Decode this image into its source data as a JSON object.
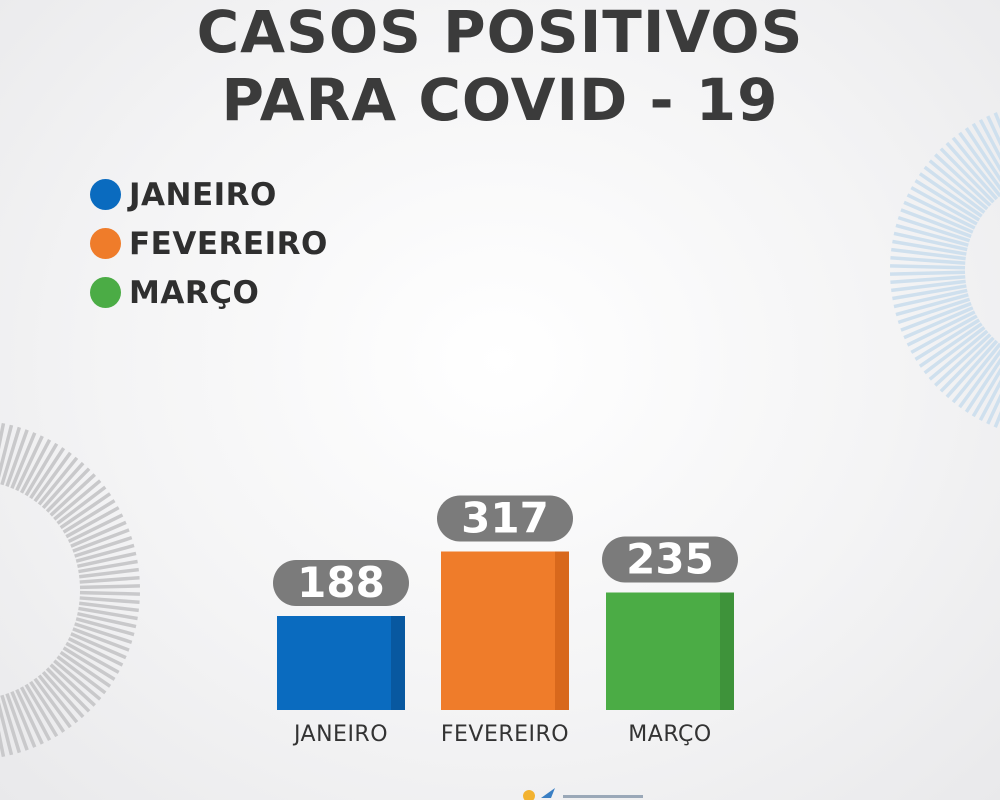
{
  "title": {
    "line1": "CASOS POSITIVOS",
    "line2": "PARA COVID - 19"
  },
  "legend": [
    {
      "label": "JANEIRO",
      "color": "#0a6bbf"
    },
    {
      "label": "FEVEREIRO",
      "color": "#ef7c2a"
    },
    {
      "label": "MARÇO",
      "color": "#4bac45"
    }
  ],
  "chart_data": {
    "type": "bar",
    "title": "CASOS POSITIVOS PARA COVID - 19",
    "categories": [
      "JANEIRO",
      "FEVEREIRO",
      "MARÇO"
    ],
    "values": [
      188,
      317,
      235
    ],
    "value_labels": [
      "188",
      "317",
      "235"
    ],
    "colors": [
      "#0a6bbf",
      "#ef7c2a",
      "#4bac45"
    ],
    "shade_colors": [
      "#0858a0",
      "#d8681c",
      "#3e933a"
    ],
    "label_badge_color": "#7b7b7b",
    "grid": false,
    "legend_position": "top-left"
  }
}
